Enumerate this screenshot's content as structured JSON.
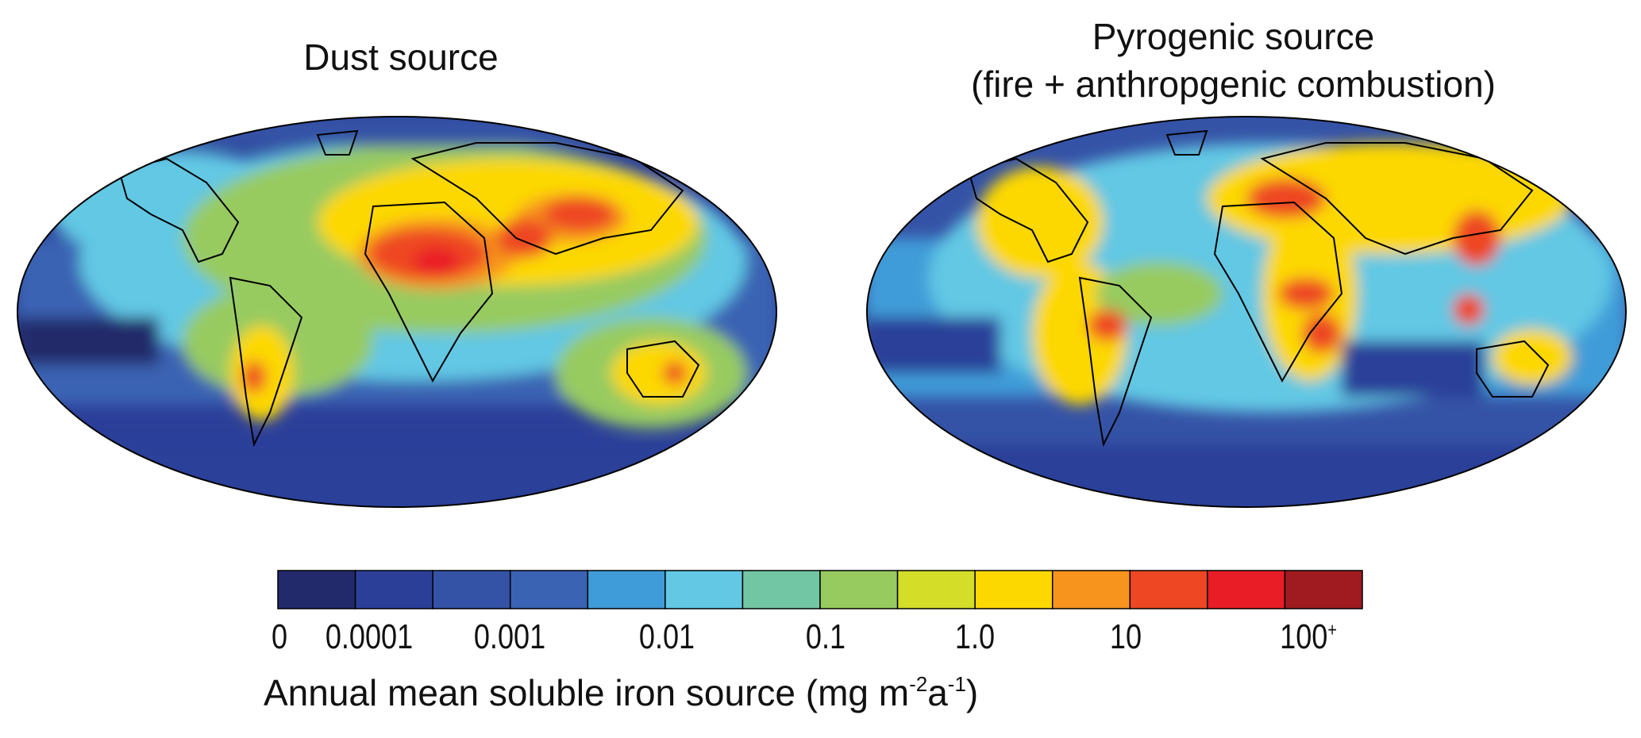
{
  "panels": [
    {
      "title": "Dust source"
    },
    {
      "title_line1": "Pyrogenic source",
      "title_line2": "(fire + anthropgenic combustion)"
    }
  ],
  "colorbar": {
    "colors": [
      "#232a6b",
      "#2b3f99",
      "#3553a6",
      "#3a63b3",
      "#3f9cd8",
      "#62c8e4",
      "#73c6a4",
      "#97cb60",
      "#d4dd27",
      "#fdd800",
      "#f7941d",
      "#ee4723",
      "#e91d25",
      "#a01b20"
    ],
    "tick_labels": [
      "0",
      "0.0001",
      "0.001",
      "0.01",
      "0.1",
      "1.0",
      "10",
      "100"
    ],
    "tick_superscript_last": "+",
    "label_main": "Annual mean soluble iron source (mg m",
    "label_exp1": "-2",
    "label_mid": "a",
    "label_exp2": "-1",
    "label_end": ")"
  }
}
